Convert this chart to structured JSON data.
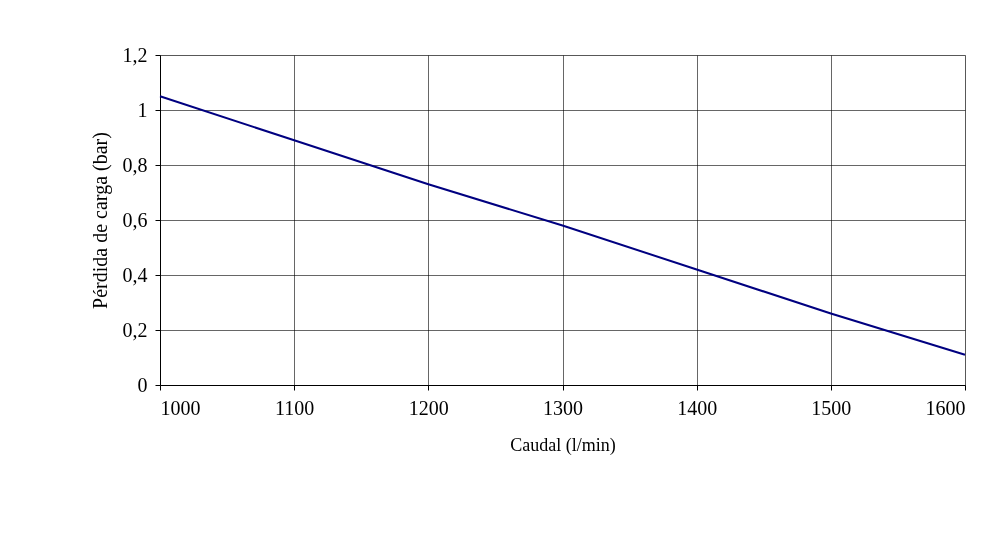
{
  "chart_data": {
    "type": "line",
    "xlabel": "Caudal (l/min)",
    "ylabel": "Pérdida de carga (bar)",
    "x": [
      1000,
      1100,
      1200,
      1300,
      1400,
      1500,
      1600
    ],
    "series": [
      {
        "color": "#000080",
        "values": [
          1.05,
          0.89,
          0.73,
          0.58,
          0.42,
          0.26,
          0.11
        ]
      }
    ],
    "xlim": [
      1000,
      1600
    ],
    "xticks": [
      1000,
      1100,
      1200,
      1300,
      1400,
      1500,
      1600
    ],
    "ylim": [
      0,
      1.2
    ],
    "yticks": [
      0,
      {
        "value": 0.2,
        "label": "0,2"
      },
      {
        "value": 0.4,
        "label": "0,4"
      },
      {
        "value": 0.6,
        "label": "0,6"
      },
      {
        "value": 0.8,
        "label": "0,8"
      },
      1,
      {
        "value": 1.2,
        "label": "1,2"
      }
    ],
    "grid": true,
    "marker": "none",
    "line_style": "solid",
    "legend": false
  }
}
